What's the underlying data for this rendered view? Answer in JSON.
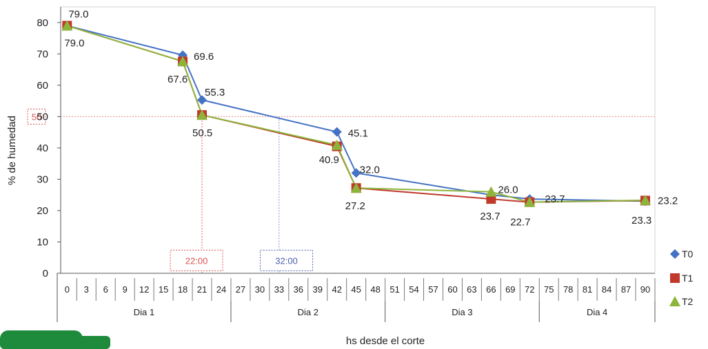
{
  "chart_data": {
    "type": "line",
    "title": "",
    "xlabel": "hs desde el corte",
    "ylabel": "% de humedad",
    "ylim": [
      0,
      85
    ],
    "yticks": [
      0,
      10,
      20,
      30,
      40,
      50,
      60,
      70,
      80
    ],
    "xlim": [
      -1,
      91.5
    ],
    "xticks": [
      0,
      3,
      6,
      9,
      12,
      15,
      18,
      21,
      24,
      27,
      30,
      33,
      36,
      39,
      42,
      45,
      48,
      51,
      54,
      57,
      60,
      63,
      66,
      69,
      72,
      75,
      78,
      81,
      84,
      87,
      90
    ],
    "day_groups": [
      {
        "label": "Dia 1",
        "from": 0,
        "to": 24
      },
      {
        "label": "Dia 2",
        "from": 24,
        "to": 48
      },
      {
        "label": "Dia 3",
        "from": 48,
        "to": 72
      },
      {
        "label": "Dia 4",
        "from": 72,
        "to": 90
      }
    ],
    "legend_position": "bottom-right",
    "series": [
      {
        "name": "T0",
        "color": "#4472c4",
        "marker": "diamond",
        "x": [
          0,
          18,
          21,
          42,
          45,
          66,
          72,
          90
        ],
        "y": [
          79.0,
          69.6,
          55.3,
          45.1,
          32.0,
          25.0,
          23.7,
          23.0
        ]
      },
      {
        "name": "T1",
        "color": "#c0392b",
        "marker": "square",
        "x": [
          0,
          18,
          21,
          42,
          45,
          66,
          72,
          90
        ],
        "y": [
          79.0,
          67.6,
          50.5,
          40.5,
          27.2,
          23.7,
          22.7,
          23.2
        ]
      },
      {
        "name": "T2",
        "color": "#8db53c",
        "marker": "triangle",
        "x": [
          0,
          18,
          21,
          42,
          45,
          66,
          72,
          90
        ],
        "y": [
          79.0,
          67.6,
          50.5,
          40.9,
          27.2,
          26.0,
          22.7,
          23.3
        ]
      }
    ],
    "data_labels": [
      {
        "text": "79.0",
        "x": 0,
        "y": 79.0,
        "dx": 2,
        "dy": -12
      },
      {
        "text": "79.0",
        "x": 0,
        "y": 79.0,
        "dx": -4,
        "dy": 30
      },
      {
        "text": "69.6",
        "x": 18,
        "y": 69.6,
        "dx": 16,
        "dy": 7
      },
      {
        "text": "67.6",
        "x": 18,
        "y": 67.6,
        "dx": -22,
        "dy": 31
      },
      {
        "text": "55.3",
        "x": 21,
        "y": 55.3,
        "dx": 4,
        "dy": -6
      },
      {
        "text": "50.5",
        "x": 21,
        "y": 50.5,
        "dx": -14,
        "dy": 31
      },
      {
        "text": "45.1",
        "x": 42,
        "y": 45.1,
        "dx": 16,
        "dy": 7
      },
      {
        "text": "40.9",
        "x": 42,
        "y": 40.9,
        "dx": -26,
        "dy": 26
      },
      {
        "text": "32.0",
        "x": 45,
        "y": 32.0,
        "dx": 5,
        "dy": 0
      },
      {
        "text": "27.2",
        "x": 45,
        "y": 27.2,
        "dx": -16,
        "dy": 31
      },
      {
        "text": "26.0",
        "x": 66,
        "y": 26.0,
        "dx": 10,
        "dy": 2
      },
      {
        "text": "23.7",
        "x": 66,
        "y": 23.7,
        "dx": -16,
        "dy": 30
      },
      {
        "text": "22.7",
        "x": 72,
        "y": 22.7,
        "dx": -28,
        "dy": 34
      },
      {
        "text": "23.7",
        "x": 72,
        "y": 23.7,
        "dx": 22,
        "dy": 5
      },
      {
        "text": "23.2",
        "x": 90,
        "y": 23.2,
        "dx": 18,
        "dy": 5
      },
      {
        "text": "23.3",
        "x": 90,
        "y": 23.3,
        "dx": -20,
        "dy": 34
      }
    ],
    "reference_lines": [
      {
        "type": "horizontal",
        "y": 50,
        "color": "#e88a8a"
      },
      {
        "type": "vertical",
        "x": 21,
        "y": 50.5,
        "color": "#e06060"
      },
      {
        "type": "vertical",
        "x": 33,
        "y": 50,
        "color": "#7f93c8"
      }
    ],
    "annotations": [
      {
        "text": "50",
        "x": -1,
        "y": 50,
        "color": "#e05050",
        "box": true
      },
      {
        "text": "22:00",
        "x": 18,
        "y": 3,
        "color": "#e05050",
        "box": true
      },
      {
        "text": "32:00",
        "x": 32,
        "y": 3,
        "color": "#4a5fb0",
        "box": true
      }
    ]
  }
}
